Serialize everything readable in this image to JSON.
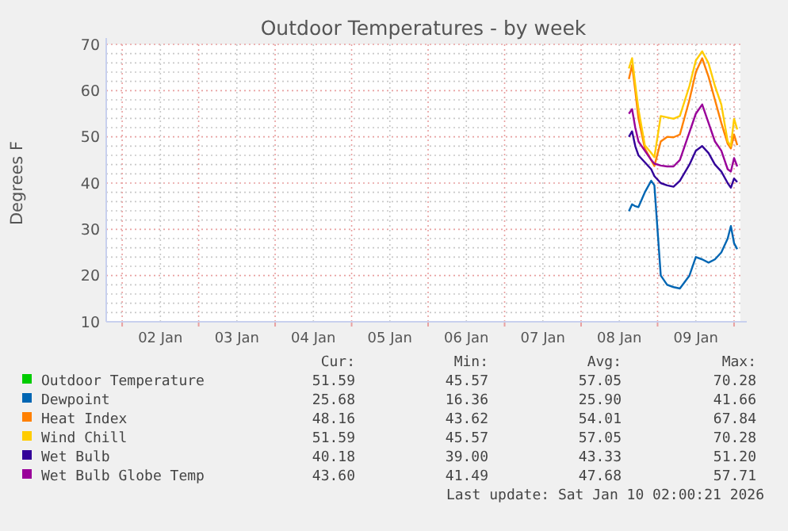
{
  "chart_data": {
    "type": "line",
    "title": "Outdoor Temperatures - by week",
    "ylabel": "Degrees F",
    "x": [
      "2026-01-08T15:00",
      "2026-01-08T16:00",
      "2026-01-08T17:00",
      "2026-01-08T18:00",
      "2026-01-08T20:00",
      "2026-01-08T22:00",
      "2026-01-08T23:00",
      "2026-01-09T01:00",
      "2026-01-09T03:00",
      "2026-01-09T05:00",
      "2026-01-09T07:00",
      "2026-01-09T10:00",
      "2026-01-09T12:00",
      "2026-01-09T14:00",
      "2026-01-09T16:00",
      "2026-01-09T18:00",
      "2026-01-09T20:00",
      "2026-01-09T22:00",
      "2026-01-09T23:00",
      "2026-01-10T00:00",
      "2026-01-10T01:00"
    ],
    "series": [
      {
        "name": "Outdoor Temperature",
        "color": "#00cc00",
        "values": [
          null,
          null,
          null,
          null,
          null,
          null,
          null,
          null,
          null,
          null,
          null,
          null,
          null,
          null,
          null,
          null,
          null,
          null,
          null,
          null,
          null
        ]
      },
      {
        "name": "Dewpoint",
        "color": "#0066b3",
        "values": [
          33.9,
          35.4,
          35,
          34.8,
          38,
          40.5,
          39.5,
          20,
          18,
          17.5,
          17.2,
          20,
          24,
          23.5,
          22.8,
          23.5,
          25,
          28,
          30.7,
          27,
          25.7
        ]
      },
      {
        "name": "Heat Index",
        "color": "#ff8000",
        "values": [
          62.5,
          65.5,
          60,
          54,
          47.5,
          45,
          43.7,
          49,
          50,
          49.9,
          50.5,
          58,
          64,
          67,
          63,
          58,
          53,
          48.5,
          47.5,
          50.5,
          48.2
        ]
      },
      {
        "name": "Wind Chill",
        "color": "#ffcc00",
        "values": [
          64.8,
          67.0,
          61.3,
          56,
          48.2,
          46.5,
          45.6,
          54.5,
          54.2,
          53.9,
          54.5,
          61,
          66.5,
          68.5,
          65.9,
          61,
          57,
          49,
          48,
          53.9,
          51.6
        ]
      },
      {
        "name": "Wet Bulb",
        "color": "#330099",
        "values": [
          50,
          51.2,
          48,
          46,
          44.5,
          43,
          41.5,
          40,
          39.5,
          39.2,
          40.5,
          44,
          47,
          48,
          46.5,
          44,
          42.5,
          40,
          39,
          41,
          40.2
        ]
      },
      {
        "name": "Wet Bulb Globe Temp",
        "color": "#990099",
        "values": [
          55,
          56,
          52,
          49,
          47,
          45,
          44.2,
          43.8,
          43.6,
          43.6,
          45,
          51,
          55,
          57,
          53,
          49,
          47,
          43,
          42.5,
          45.4,
          43.6
        ]
      }
    ],
    "xlim": [
      "2026-01-01T19:00",
      "2026-01-10T02:00"
    ],
    "xticks": [
      {
        "value": "2026-01-02T00:00",
        "label": null
      },
      {
        "value": "2026-01-02T12:00",
        "label": "02 Jan"
      },
      {
        "value": "2026-01-03T00:00",
        "label": null
      },
      {
        "value": "2026-01-03T12:00",
        "label": "03 Jan"
      },
      {
        "value": "2026-01-04T00:00",
        "label": null
      },
      {
        "value": "2026-01-04T12:00",
        "label": "04 Jan"
      },
      {
        "value": "2026-01-05T00:00",
        "label": null
      },
      {
        "value": "2026-01-05T12:00",
        "label": "05 Jan"
      },
      {
        "value": "2026-01-06T00:00",
        "label": null
      },
      {
        "value": "2026-01-06T12:00",
        "label": "06 Jan"
      },
      {
        "value": "2026-01-07T00:00",
        "label": null
      },
      {
        "value": "2026-01-07T12:00",
        "label": "07 Jan"
      },
      {
        "value": "2026-01-08T00:00",
        "label": null
      },
      {
        "value": "2026-01-08T12:00",
        "label": "08 Jan"
      },
      {
        "value": "2026-01-09T00:00",
        "label": null
      },
      {
        "value": "2026-01-09T12:00",
        "label": "09 Jan"
      },
      {
        "value": "2026-01-10T00:00",
        "label": null
      }
    ],
    "ylim": [
      10,
      70
    ],
    "yticks": [
      10,
      {
        "value": 12,
        "label": null
      },
      {
        "value": 14,
        "label": null
      },
      {
        "value": 16,
        "label": null
      },
      {
        "value": 18,
        "label": null
      },
      20,
      {
        "value": 22,
        "label": null
      },
      {
        "value": 24,
        "label": null
      },
      {
        "value": 26,
        "label": null
      },
      {
        "value": 28,
        "label": null
      },
      30,
      {
        "value": 32,
        "label": null
      },
      {
        "value": 34,
        "label": null
      },
      {
        "value": 36,
        "label": null
      },
      {
        "value": 38,
        "label": null
      },
      40,
      {
        "value": 42,
        "label": null
      },
      {
        "value": 44,
        "label": null
      },
      {
        "value": 46,
        "label": null
      },
      {
        "value": 48,
        "label": null
      },
      50,
      {
        "value": 52,
        "label": null
      },
      {
        "value": 54,
        "label": null
      },
      {
        "value": 56,
        "label": null
      },
      {
        "value": 58,
        "label": null
      },
      60,
      {
        "value": 62,
        "label": null
      },
      {
        "value": 64,
        "label": null
      },
      {
        "value": 66,
        "label": null
      },
      {
        "value": 68,
        "label": null
      },
      70
    ],
    "grid": true,
    "legend": "bottom",
    "marker": "none",
    "line_style": "solid",
    "annotations": [
      "Cur:",
      "Min:",
      "Avg:",
      "Max:",
      "51.59",
      "45.57",
      "57.05",
      "70.28",
      "25.68",
      "16.36",
      "25.90",
      "41.66",
      "48.16",
      "43.62",
      "54.01",
      "67.84",
      "51.59",
      "45.57",
      "57.05",
      "70.28",
      "40.18",
      "39.00",
      "43.33",
      "51.20",
      "43.60",
      "41.49",
      "47.68",
      "57.71",
      "Last update: Sat Jan 10 02:00:21 2026"
    ]
  }
}
